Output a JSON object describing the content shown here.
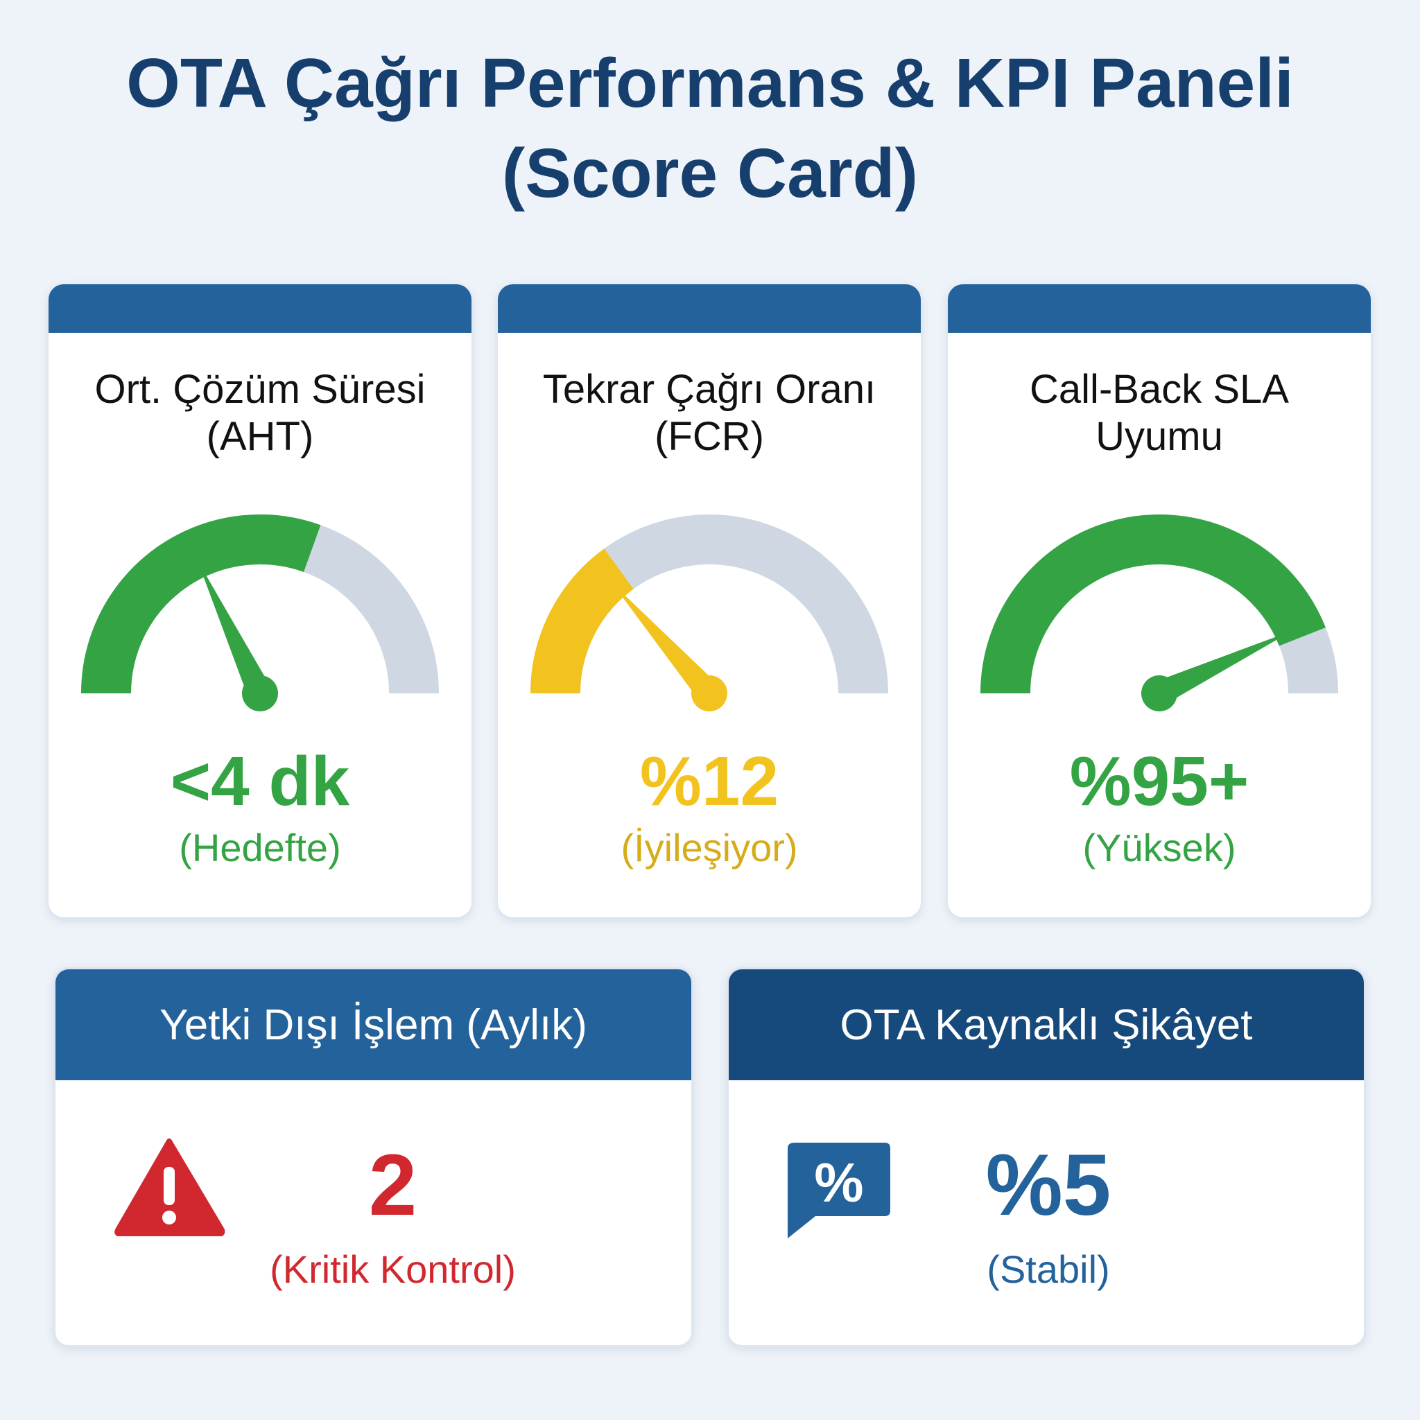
{
  "header": {
    "title_line1": "OTA Çağrı Performans & KPI Paneli",
    "title_line2": "(Score Card)"
  },
  "kpi_cards": [
    {
      "title_line1": "Ort. Çözüm Süresi",
      "title_line2": "(AHT)",
      "value": "<4 dk",
      "status": "(Hedefte)",
      "color": "#34a344",
      "gauge_fill": 0.61,
      "needle": 0.36
    },
    {
      "title_line1": "Tekrar Çağrı Oranı",
      "title_line2": "(FCR)",
      "value": "%12",
      "status": "(İyileşiyor)",
      "color": "#f2c31f",
      "status_color": "#d6ac1a",
      "gauge_fill": 0.3,
      "needle": 0.27
    },
    {
      "title_line1": "Call-Back SLA",
      "title_line2": "Uyumu",
      "value": "%95+",
      "status": "(Yüksek)",
      "color": "#34a344",
      "gauge_fill": 0.88,
      "needle": 0.86
    }
  ],
  "bottom_cards": [
    {
      "header": "Yetki Dışı İşlem (Aylık)",
      "value": "2",
      "status": "(Kritik Kontrol)",
      "icon": "warning-triangle-icon",
      "color": "#d0282e",
      "header_color": "#23629b"
    },
    {
      "header": "OTA Kaynaklı Şikâyet",
      "value": "%5",
      "status": "(Stabil)",
      "icon": "percent-speech-bubble-icon",
      "color": "#23629b",
      "header_color": "#174a7c"
    }
  ],
  "colors": {
    "gauge_track": "#cfd8e2",
    "card_bar": "#23629b"
  }
}
